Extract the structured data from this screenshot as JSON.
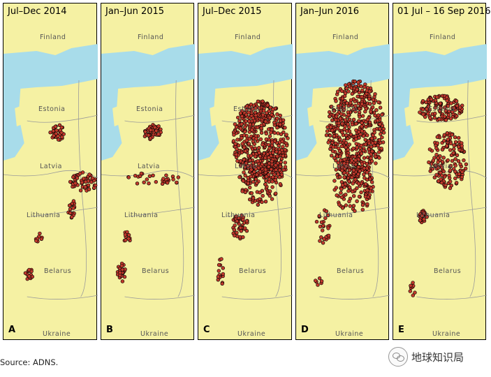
{
  "source": "Source: ADNS.",
  "watermark": "地球知识局",
  "countries": [
    "Finland",
    "Estonia",
    "Latvia",
    "Lithuania",
    "Belarus",
    "Ukraine"
  ],
  "panels": [
    {
      "title": "Jul–Dec 2014",
      "letter": "A",
      "density": "low"
    },
    {
      "title": "Jan–Jun 2015",
      "letter": "B",
      "density": "low"
    },
    {
      "title": "Jul–Dec 2015",
      "letter": "C",
      "density": "high"
    },
    {
      "title": "Jan–Jun 2016",
      "letter": "D",
      "density": "high"
    },
    {
      "title": "01 Jul – 16 Sep 2016",
      "letter": "E",
      "density": "medium"
    }
  ],
  "colors": {
    "land": "#f5f1a3",
    "sea": "#a8dcea",
    "outbreak": "#c0392b",
    "outbreak_edge": "#000000",
    "border": "#9a9a9a"
  }
}
